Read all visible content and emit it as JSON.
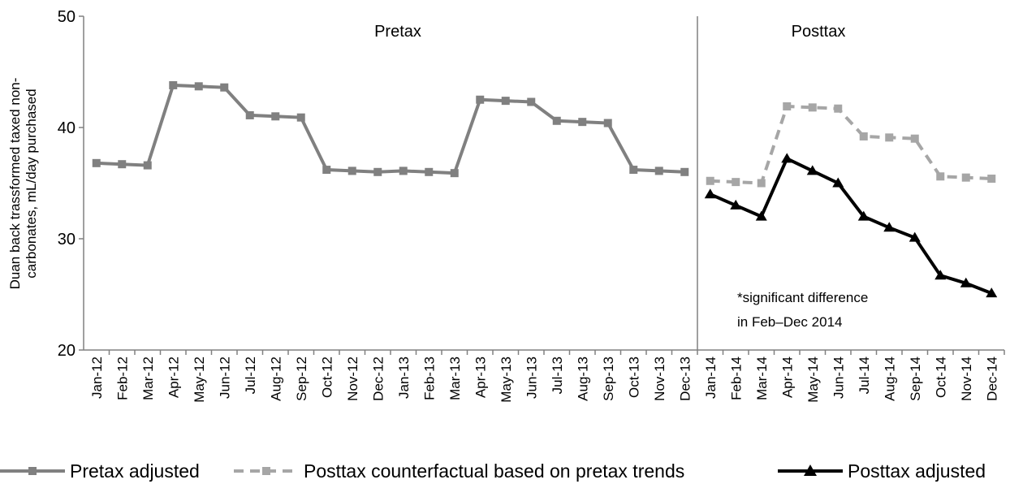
{
  "chart_data": {
    "type": "line",
    "y_label": [
      "Duan back trassformed taxed non-",
      "carbonates, mL/day purchased"
    ],
    "categories": [
      "Jan-12",
      "Feb-12",
      "Mar-12",
      "Apr-12",
      "May-12",
      "Jun-12",
      "Jul-12",
      "Aug-12",
      "Sep-12",
      "Oct-12",
      "Nov-12",
      "Dec-12",
      "Jan-13",
      "Feb-13",
      "Mar-13",
      "Apr-13",
      "May-13",
      "Jun-13",
      "Jul-13",
      "Aug-13",
      "Sep-13",
      "Oct-13",
      "Nov-13",
      "Dec-13",
      "Jan-14",
      "Feb-14",
      "Mar-14",
      "Apr-14",
      "May-14",
      "Jun-14",
      "Jul-14",
      "Aug-14",
      "Sep-14",
      "Oct-14",
      "Nov-14",
      "Dec-14"
    ],
    "series": [
      {
        "name": "Pretax adjusted",
        "color": "#808080",
        "marker": "square",
        "dashed": false,
        "values": [
          36.8,
          36.7,
          36.6,
          43.8,
          43.7,
          43.6,
          41.1,
          41.0,
          40.9,
          36.2,
          36.1,
          36.0,
          36.1,
          36.0,
          35.9,
          42.5,
          42.4,
          42.3,
          40.6,
          40.5,
          40.4,
          36.2,
          36.1,
          36.0,
          null,
          null,
          null,
          null,
          null,
          null,
          null,
          null,
          null,
          null,
          null,
          null
        ]
      },
      {
        "name": "Posttax counterfactual based on pretax trends",
        "color": "#a6a6a6",
        "marker": "square",
        "dashed": true,
        "values": [
          null,
          null,
          null,
          null,
          null,
          null,
          null,
          null,
          null,
          null,
          null,
          null,
          null,
          null,
          null,
          null,
          null,
          null,
          null,
          null,
          null,
          null,
          null,
          null,
          35.2,
          35.1,
          35.0,
          41.9,
          41.8,
          41.7,
          39.2,
          39.1,
          39.0,
          35.6,
          35.5,
          35.4
        ]
      },
      {
        "name": "Posttax adjusted",
        "color": "#000000",
        "marker": "triangle",
        "dashed": false,
        "values": [
          null,
          null,
          null,
          null,
          null,
          null,
          null,
          null,
          null,
          null,
          null,
          null,
          null,
          null,
          null,
          null,
          null,
          null,
          null,
          null,
          null,
          null,
          null,
          null,
          34.0,
          33.0,
          32.0,
          37.2,
          36.1,
          35.0,
          32.0,
          31.0,
          30.1,
          26.7,
          26.0,
          25.1
        ]
      }
    ],
    "ylim": [
      20,
      50
    ],
    "yticks": [
      20,
      30,
      40,
      50
    ],
    "grid": false,
    "period_labels": [
      "Pretax",
      "Posttax"
    ],
    "annotation": [
      "*significant difference",
      "in Feb–Dec 2014"
    ],
    "legend": "bottom"
  }
}
